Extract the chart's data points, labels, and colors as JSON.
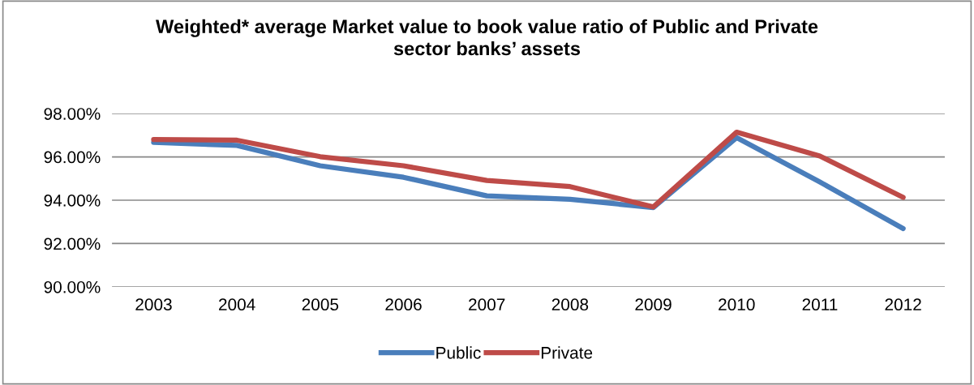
{
  "chart_data": {
    "type": "line",
    "title": "Weighted* average Market value to book value ratio of Public and Private\nsector banks’ assets",
    "categories": [
      "2003",
      "2004",
      "2005",
      "2006",
      "2007",
      "2008",
      "2009",
      "2010",
      "2011",
      "2012"
    ],
    "series": [
      {
        "name": "Public",
        "color": "#4a7ebb",
        "values": [
          96.67,
          96.53,
          95.59,
          95.06,
          94.2,
          94.04,
          93.66,
          96.89,
          94.84,
          92.69
        ]
      },
      {
        "name": "Private",
        "color": "#be4b48",
        "values": [
          96.8,
          96.77,
          96.01,
          95.59,
          94.91,
          94.63,
          93.69,
          97.14,
          96.04,
          94.13
        ]
      }
    ],
    "ylim": [
      90,
      98
    ],
    "yticks": [
      {
        "value": 90,
        "label": "90.00%"
      },
      {
        "value": 92,
        "label": "92.00%"
      },
      {
        "value": 94,
        "label": "94.00%"
      },
      {
        "value": 96,
        "label": "96.00%"
      },
      {
        "value": 98,
        "label": "98.00%"
      }
    ],
    "grid": "y",
    "legend": "bottom",
    "marker": "none",
    "line_style": "solid"
  }
}
